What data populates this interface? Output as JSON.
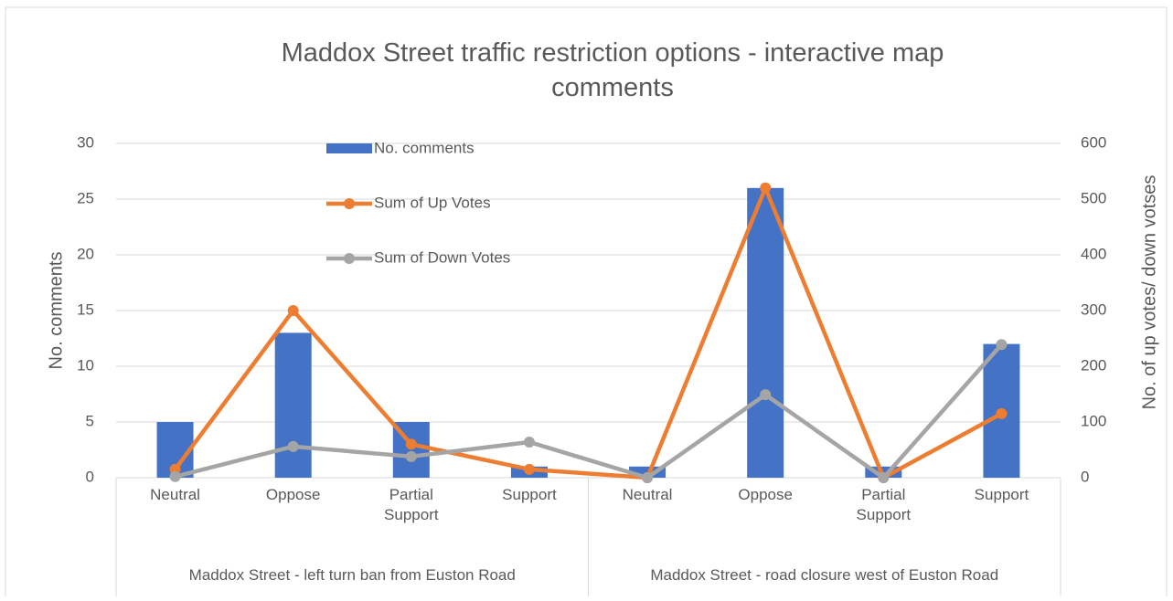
{
  "chart_data": {
    "type": "bar_line",
    "title": "Maddox Street traffic restriction options - interactive map comments",
    "categories": [
      "Neutral",
      "Oppose",
      "Partial Support",
      "Support",
      "Neutral",
      "Oppose",
      "Partial Support",
      "Support"
    ],
    "groups": [
      "Maddox Street - left turn ban from Euston Road",
      "Maddox Street - road closure west of Euston Road"
    ],
    "ylabel": "No. comments",
    "y2label": "No. of up votes/ down votses",
    "ylim": [
      0,
      30
    ],
    "yticks": [
      0,
      5,
      10,
      15,
      20,
      25,
      30
    ],
    "y2lim": [
      0,
      600
    ],
    "y2ticks": [
      0,
      100,
      200,
      300,
      400,
      500,
      600
    ],
    "grid": true,
    "series": [
      {
        "name": "No. comments",
        "type": "bar",
        "color": "#4472c4",
        "values": [
          5,
          13,
          5,
          1,
          1,
          26,
          1,
          12
        ]
      },
      {
        "name": "Sum of Up Votes",
        "type": "line",
        "axis": "y2",
        "color": "#ed7d31",
        "values": [
          15,
          300,
          60,
          15,
          0,
          520,
          0,
          115
        ]
      },
      {
        "name": "Sum of Down Votes",
        "type": "line",
        "axis": "y2",
        "color": "#a5a5a5",
        "values": [
          2,
          56,
          38,
          64,
          0,
          149,
          0,
          239
        ]
      }
    ]
  }
}
